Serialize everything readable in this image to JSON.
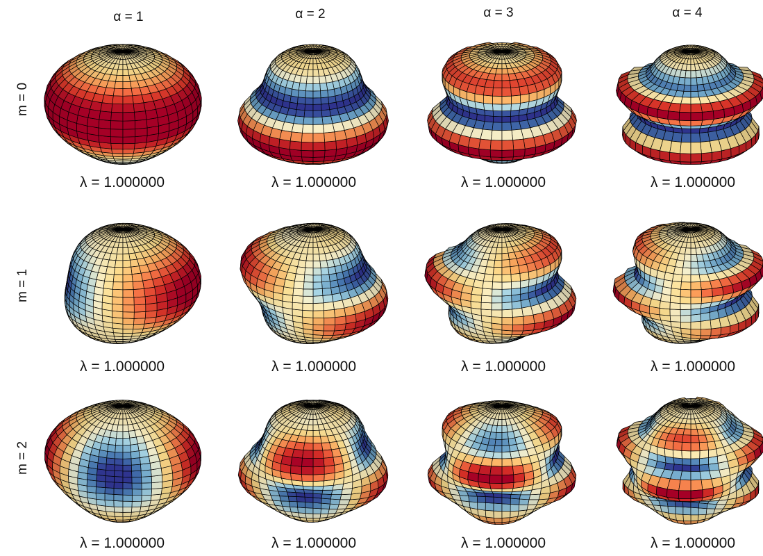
{
  "columns": [
    {
      "label": "α = 1",
      "alpha": 1
    },
    {
      "label": "α = 2",
      "alpha": 2
    },
    {
      "label": "α = 3",
      "alpha": 3
    },
    {
      "label": "α = 4",
      "alpha": 4
    }
  ],
  "rows": [
    {
      "label": "m = 0",
      "m": 0
    },
    {
      "label": "m = 1",
      "m": 1
    },
    {
      "label": "m = 2",
      "m": 2
    }
  ],
  "panels": [
    [
      {
        "caption": "λ =  1.000000"
      },
      {
        "caption": "λ =  1.000000"
      },
      {
        "caption": "λ =  1.000000"
      },
      {
        "caption": "λ =  1.000000"
      }
    ],
    [
      {
        "caption": "λ =  1.000000"
      },
      {
        "caption": "λ =  1.000000"
      },
      {
        "caption": "λ =  1.000000"
      },
      {
        "caption": "λ =  1.000000"
      }
    ],
    [
      {
        "caption": "λ =  1.000000"
      },
      {
        "caption": "λ =  1.000000"
      },
      {
        "caption": "λ =  1.000000"
      },
      {
        "caption": "λ =  1.000000"
      }
    ]
  ],
  "colormap": [
    "#313695",
    "#4575b4",
    "#74add1",
    "#abd9e9",
    "#fdf5cf",
    "#fee090",
    "#fdae61",
    "#f46d43",
    "#d73027",
    "#a50026"
  ],
  "mesh_color": "#000000"
}
